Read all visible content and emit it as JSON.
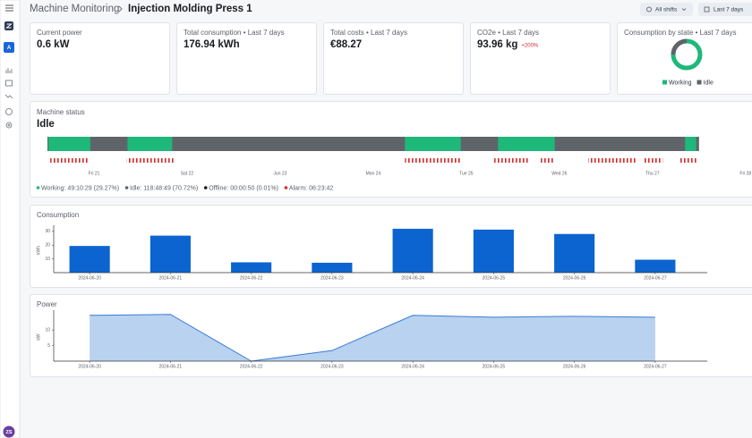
{
  "sidebar": {
    "workspace": "A",
    "user_initials": "ZS"
  },
  "header": {
    "breadcrumb": "Machine Monitoring",
    "title": "Injection Molding Press 1",
    "shift_filter": "All shifts",
    "range_filter": "Last 7 days"
  },
  "kpis": [
    {
      "label": "Current power",
      "value": "0.6 kW"
    },
    {
      "label": "Total consumption • Last 7 days",
      "value": "176.94 kWh"
    },
    {
      "label": "Total costs • Last 7 days",
      "value": "€88.27"
    },
    {
      "label": "CO2e • Last 7 days",
      "value": "93.96 kg",
      "badge": "+200%"
    }
  ],
  "chart_data": [
    {
      "type": "donut",
      "title": "Consumption by state • Last 7 days",
      "categories": [
        "Working",
        "Idle"
      ],
      "values": [
        75,
        25
      ],
      "colors": [
        "#1db87a",
        "#5f6469"
      ]
    },
    {
      "type": "timeline",
      "title": "Machine status",
      "state": "Idle",
      "xlim": [
        -0.5,
        7.05
      ],
      "xticks": [
        {
          "value": 0,
          "label": "Fri 21"
        },
        {
          "value": 1,
          "label": "Sat 22"
        },
        {
          "value": 2,
          "label": "Jun 23"
        },
        {
          "value": 3,
          "label": "Mon 24"
        },
        {
          "value": 4,
          "label": "Tue 25"
        },
        {
          "value": 5,
          "label": "Wed 26"
        },
        {
          "value": 6,
          "label": "Thu 27"
        },
        {
          "value": 7,
          "label": "Fri 28"
        }
      ],
      "series": [
        {
          "name": "Working: 49:10:29 (29.27%)",
          "color": "#1db87a",
          "intervals": [
            [
              -0.49,
              -0.04
            ],
            [
              0.36,
              0.84
            ],
            [
              3.34,
              3.94
            ],
            [
              4.34,
              4.95
            ],
            [
              6.35,
              6.47
            ]
          ]
        },
        {
          "name": "Idle: 118:48:49 (70.72%)",
          "color": "#5f6469",
          "intervals": [
            [
              -0.5,
              6.5
            ]
          ]
        },
        {
          "name": "Offline: 00:00:50 (0.01%)",
          "color": "#111111"
        },
        {
          "name": "Alarm: 06:23:42",
          "color": "#d62b2b",
          "intervals": [
            [
              -0.47,
              -0.05
            ],
            [
              0.35,
              0.87
            ],
            [
              3.34,
              3.94
            ],
            [
              4.3,
              4.66
            ],
            [
              4.8,
              4.95
            ],
            [
              5.31,
              5.82
            ],
            [
              5.91,
              6.11
            ],
            [
              6.3,
              6.49
            ]
          ]
        }
      ]
    },
    {
      "type": "bar",
      "title": "Consumption",
      "y_label": "kWh",
      "categories": [
        "2024-06-20",
        "2024-06-21",
        "2024-06-22",
        "2024-06-23",
        "2024-06-24",
        "2024-06-25",
        "2024-06-26",
        "2024-06-27"
      ],
      "values": [
        19.4,
        26.9,
        7.5,
        7.2,
        31.9,
        31.3,
        28.1,
        9.4
      ],
      "color": "#0b64d0",
      "ylim": [
        0,
        32.5
      ],
      "yticks": [
        10,
        20,
        30
      ]
    },
    {
      "type": "area",
      "title": "Power",
      "y_label": "kW",
      "categories": [
        "2024-06-20",
        "2024-06-21",
        "2024-06-22",
        "2024-06-23",
        "2024-06-24",
        "2024-06-25",
        "2024-06-26",
        "2024-06-27"
      ],
      "values": [
        14.7,
        15.0,
        0,
        3.4,
        14.7,
        14.1,
        14.4,
        14.1
      ],
      "color": "#3a7bd5",
      "fill": "#b8d2ef",
      "ylim": [
        0,
        15.5
      ],
      "yticks": [
        5,
        10
      ]
    }
  ]
}
